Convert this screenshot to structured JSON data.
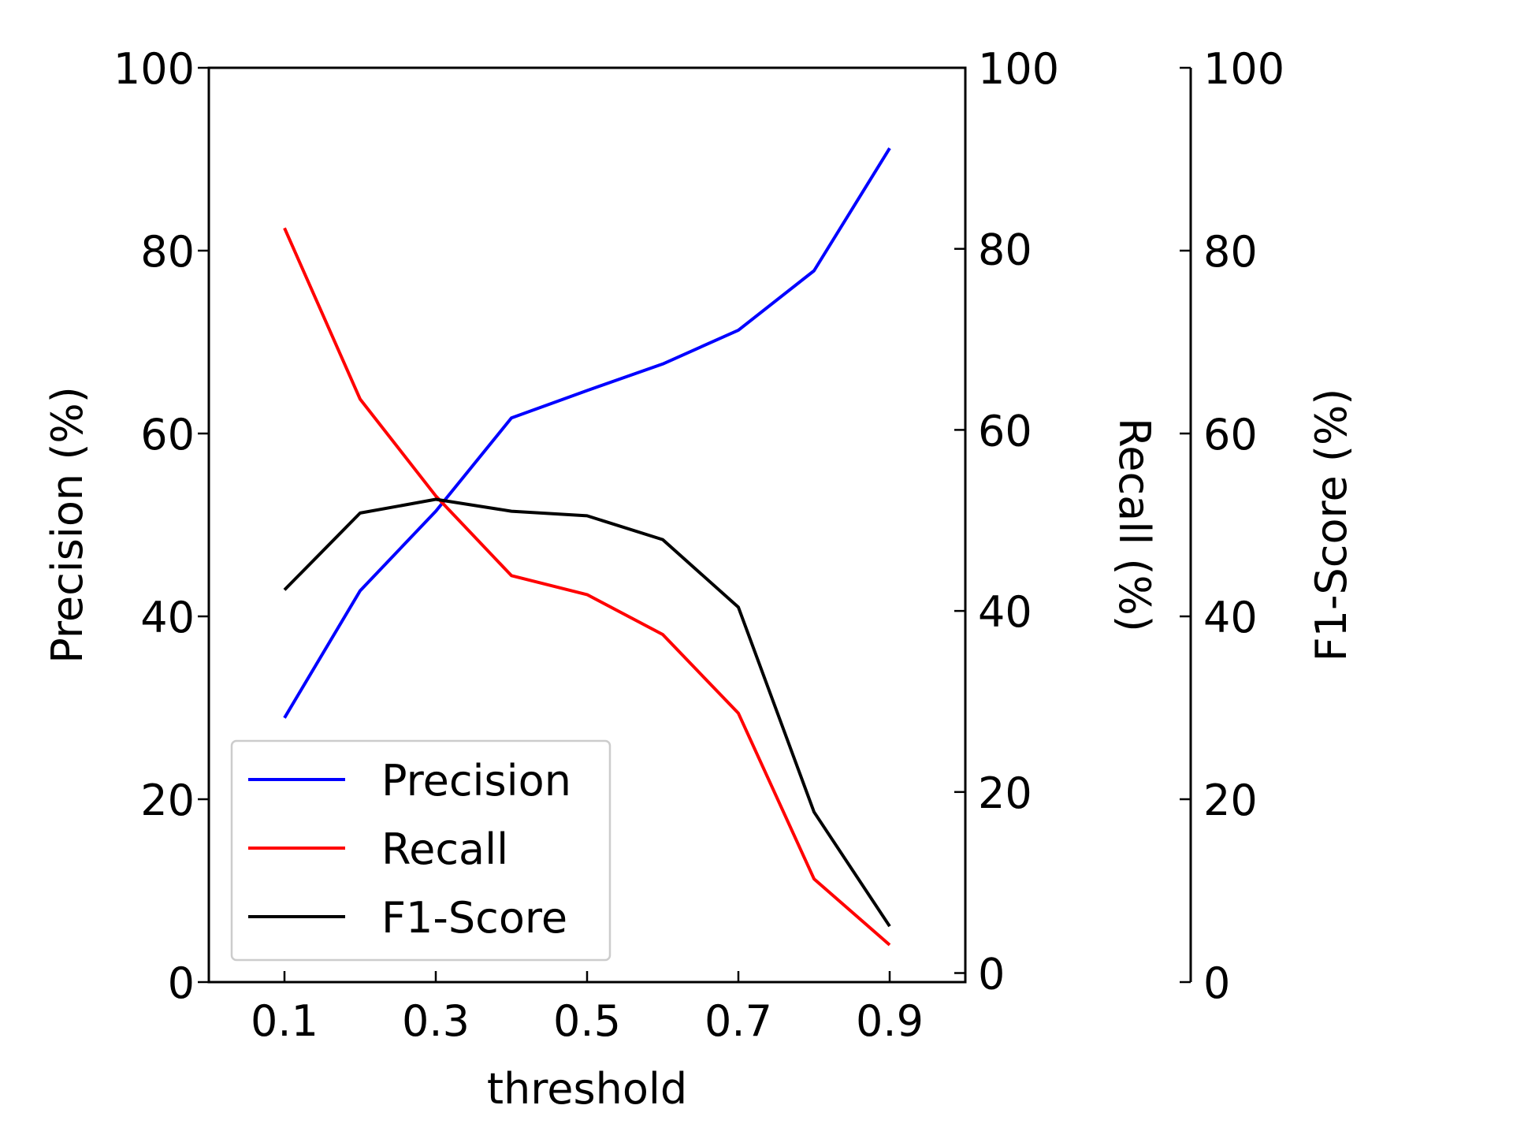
{
  "chart_data": {
    "type": "line",
    "xlabel": "threshold",
    "x": [
      0.1,
      0.2,
      0.3,
      0.4,
      0.5,
      0.6,
      0.7,
      0.8,
      0.9
    ],
    "xlim": [
      0.0,
      1.0
    ],
    "x_ticks": [
      0.1,
      0.3,
      0.5,
      0.7,
      0.9
    ],
    "x_tick_labels": [
      "0.1",
      "0.3",
      "0.5",
      "0.7",
      "0.9"
    ],
    "axes": [
      {
        "label": "Precision (%)",
        "side": "left",
        "ylim": [
          0,
          100
        ],
        "ticks": [
          0,
          20,
          40,
          60,
          80,
          100
        ],
        "tick_labels": [
          "0",
          "20",
          "40",
          "60",
          "80",
          "100"
        ]
      },
      {
        "label": "Recall (%)",
        "side": "right",
        "ylim": [
          -1,
          100
        ],
        "ticks": [
          0,
          20,
          40,
          60,
          80,
          100
        ],
        "tick_labels": [
          "0",
          "20",
          "40",
          "60",
          "80",
          "100"
        ]
      },
      {
        "label": "F1-Score (%)",
        "side": "right-offset",
        "ylim": [
          0,
          100
        ],
        "ticks": [
          0,
          20,
          40,
          60,
          80,
          100
        ],
        "tick_labels": [
          "0",
          "20",
          "40",
          "60",
          "80",
          "100"
        ]
      }
    ],
    "series": [
      {
        "name": "Precision",
        "axis": 0,
        "color": "#0000ff",
        "values": [
          28.9,
          42.8,
          51.5,
          61.7,
          64.7,
          67.6,
          71.3,
          77.8,
          91.2
        ]
      },
      {
        "name": "Recall",
        "axis": 1,
        "color": "#ff0000",
        "values": [
          82.3,
          63.4,
          52.7,
          43.9,
          41.8,
          37.4,
          28.7,
          10.4,
          3.1
        ]
      },
      {
        "name": "F1-Score",
        "axis": 2,
        "color": "#000000",
        "values": [
          42.9,
          51.3,
          52.8,
          51.5,
          51.0,
          48.4,
          41.0,
          18.6,
          6.1
        ]
      }
    ],
    "legend": {
      "placement": "lower-left",
      "entries": [
        "Precision",
        "Recall",
        "F1-Score"
      ]
    },
    "grid": false
  }
}
